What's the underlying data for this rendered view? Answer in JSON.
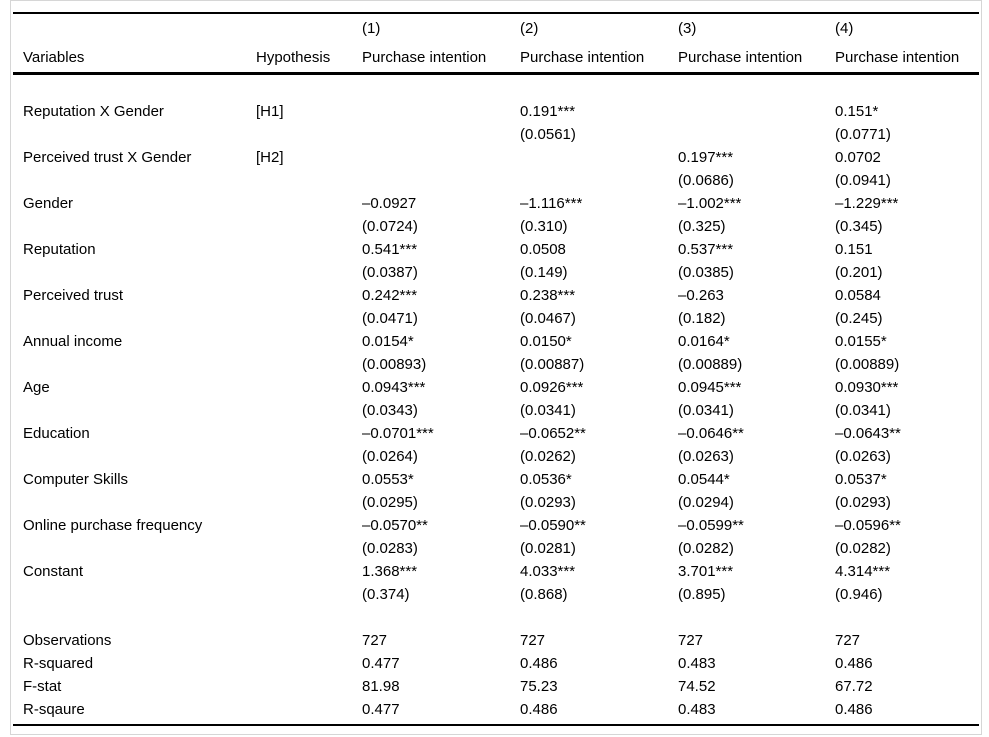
{
  "table": {
    "model_numbers": [
      "(1)",
      "(2)",
      "(3)",
      "(4)"
    ],
    "col_headers": {
      "variables": "Variables",
      "hypothesis": "Hypothesis",
      "dep_var": "Purchase intention"
    },
    "rows": [
      {
        "label": "Reputation X Gender",
        "hypothesis": "[H1]",
        "cells": [
          [
            "",
            ""
          ],
          [
            "0.191***",
            "(0.0561)"
          ],
          [
            "",
            ""
          ],
          [
            "0.151*",
            "(0.0771)"
          ]
        ]
      },
      {
        "label": "Perceived trust X Gender",
        "hypothesis": "[H2]",
        "cells": [
          [
            "",
            ""
          ],
          [
            "",
            ""
          ],
          [
            "0.197***",
            "(0.0686)"
          ],
          [
            "0.0702",
            "(0.0941)"
          ]
        ]
      },
      {
        "label": "Gender",
        "hypothesis": "",
        "cells": [
          [
            "–0.0927",
            "(0.0724)"
          ],
          [
            "–1.116***",
            "(0.310)"
          ],
          [
            "–1.002***",
            "(0.325)"
          ],
          [
            "–1.229***",
            "(0.345)"
          ]
        ]
      },
      {
        "label": "Reputation",
        "hypothesis": "",
        "cells": [
          [
            "0.541***",
            "(0.0387)"
          ],
          [
            "0.0508",
            "(0.149)"
          ],
          [
            "0.537***",
            "(0.0385)"
          ],
          [
            "0.151",
            "(0.201)"
          ]
        ]
      },
      {
        "label": "Perceived trust",
        "hypothesis": "",
        "cells": [
          [
            "0.242***",
            "(0.0471)"
          ],
          [
            "0.238***",
            "(0.0467)"
          ],
          [
            "–0.263",
            "(0.182)"
          ],
          [
            "0.0584",
            "(0.245)"
          ]
        ]
      },
      {
        "label": "Annual income",
        "hypothesis": "",
        "cells": [
          [
            "0.0154*",
            "(0.00893)"
          ],
          [
            "0.0150*",
            "(0.00887)"
          ],
          [
            "0.0164*",
            "(0.00889)"
          ],
          [
            "0.0155*",
            "(0.00889)"
          ]
        ]
      },
      {
        "label": "Age",
        "hypothesis": "",
        "cells": [
          [
            "0.0943***",
            "(0.0343)"
          ],
          [
            "0.0926***",
            "(0.0341)"
          ],
          [
            "0.0945***",
            "(0.0341)"
          ],
          [
            "0.0930***",
            "(0.0341)"
          ]
        ]
      },
      {
        "label": "Education",
        "hypothesis": "",
        "cells": [
          [
            "–0.0701***",
            "(0.0264)"
          ],
          [
            "–0.0652**",
            "(0.0262)"
          ],
          [
            "–0.0646**",
            "(0.0263)"
          ],
          [
            "–0.0643**",
            "(0.0263)"
          ]
        ]
      },
      {
        "label": "Computer Skills",
        "hypothesis": "",
        "cells": [
          [
            "0.0553*",
            "(0.0295)"
          ],
          [
            "0.0536*",
            "(0.0293)"
          ],
          [
            "0.0544*",
            "(0.0294)"
          ],
          [
            "0.0537*",
            "(0.0293)"
          ]
        ]
      },
      {
        "label": "Online purchase frequency",
        "hypothesis": "",
        "cells": [
          [
            "–0.0570**",
            "(0.0283)"
          ],
          [
            "–0.0590**",
            "(0.0281)"
          ],
          [
            "–0.0599**",
            "(0.0282)"
          ],
          [
            "–0.0596**",
            "(0.0282)"
          ]
        ]
      },
      {
        "label": "Constant",
        "hypothesis": "",
        "cells": [
          [
            "1.368***",
            "(0.374)"
          ],
          [
            "4.033***",
            "(0.868)"
          ],
          [
            "3.701***",
            "(0.895)"
          ],
          [
            "4.314***",
            "(0.946)"
          ]
        ]
      }
    ],
    "stats": [
      {
        "label": "Observations",
        "values": [
          "727",
          "727",
          "727",
          "727"
        ]
      },
      {
        "label": "R-squared",
        "values": [
          "0.477",
          "0.486",
          "0.483",
          "0.486"
        ]
      },
      {
        "label": "F-stat",
        "values": [
          "81.98",
          "75.23",
          "74.52",
          "67.72"
        ]
      },
      {
        "label": "R-sqaure",
        "values": [
          "0.477",
          "0.486",
          "0.483",
          "0.486"
        ]
      }
    ]
  }
}
